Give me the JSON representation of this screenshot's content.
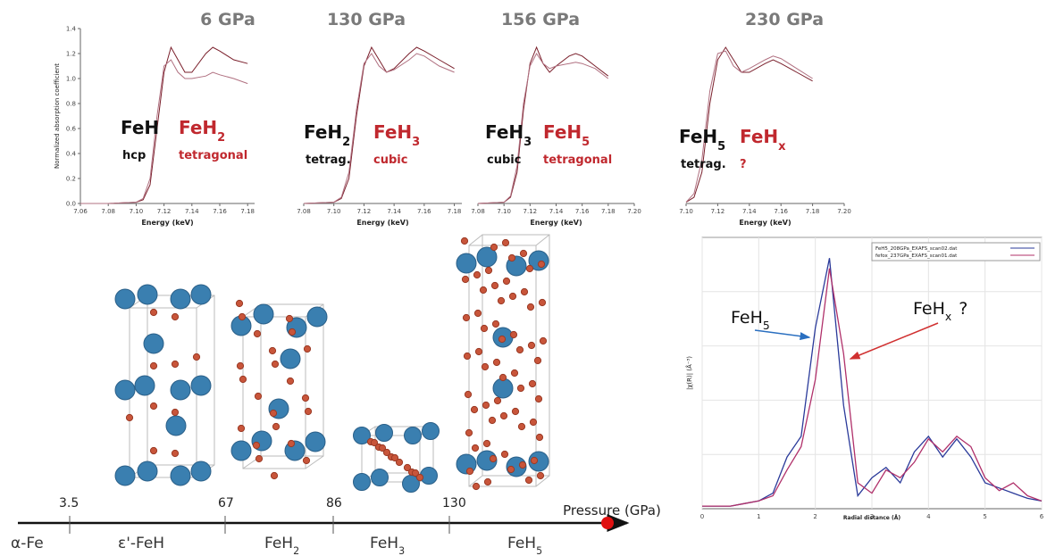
{
  "chart_data": [
    {
      "type": "line",
      "title": "6 GPa",
      "xlabel": "Energy (keV)",
      "ylabel": "Normalized absorption coefficient",
      "xlim": [
        7.06,
        7.185
      ],
      "ylim": [
        0,
        1.4
      ],
      "xticks": [
        7.06,
        7.08,
        {
          "value": 7.1,
          "label": "7.10"
        },
        7.12,
        7.14,
        7.16,
        7.18
      ],
      "yticks": [
        {
          "value": 0,
          "label": "0.0"
        },
        0.2,
        0.4,
        0.6,
        0.8,
        {
          "value": 1,
          "label": "1.0"
        },
        1.2,
        1.4
      ],
      "x": [
        7.06,
        7.08,
        7.1,
        7.105,
        7.11,
        7.115,
        7.12,
        7.125,
        7.13,
        7.135,
        7.14,
        7.15,
        7.155,
        7.16,
        7.17,
        7.18
      ],
      "series": [
        {
          "color": "#7a1f2b",
          "values": [
            0,
            0,
            0.01,
            0.03,
            0.15,
            0.6,
            1.05,
            1.25,
            1.15,
            1.05,
            1.05,
            1.2,
            1.25,
            1.22,
            1.15,
            1.12
          ]
        },
        {
          "color": "#b07080",
          "values": [
            0,
            0,
            0.01,
            0.04,
            0.2,
            0.7,
            1.1,
            1.15,
            1.05,
            1.0,
            1.0,
            1.02,
            1.05,
            1.03,
            1.0,
            0.96
          ]
        }
      ],
      "phases": [
        {
          "base": "FeH",
          "note": "hcp",
          "color": "#111111"
        },
        {
          "base": "FeH",
          "sub": "2",
          "note": "tetragonal",
          "color": "#c0282e"
        }
      ]
    },
    {
      "type": "line",
      "title": "130 GPa",
      "xlabel": "Energy (keV)",
      "xlim": [
        7.08,
        7.185
      ],
      "ylim": [
        0,
        1.4
      ],
      "xticks": [
        7.08,
        {
          "value": 7.1,
          "label": "7.10"
        },
        7.12,
        7.14,
        7.16,
        7.18
      ],
      "x": [
        7.08,
        7.1,
        7.105,
        7.11,
        7.115,
        7.12,
        7.125,
        7.13,
        7.135,
        7.14,
        7.15,
        7.155,
        7.16,
        7.17,
        7.18
      ],
      "series": [
        {
          "color": "#7a1f2b",
          "values": [
            0,
            0.01,
            0.04,
            0.2,
            0.7,
            1.1,
            1.25,
            1.15,
            1.05,
            1.08,
            1.2,
            1.25,
            1.22,
            1.15,
            1.08
          ]
        },
        {
          "color": "#b07080",
          "values": [
            0,
            0.01,
            0.05,
            0.25,
            0.75,
            1.12,
            1.2,
            1.1,
            1.05,
            1.07,
            1.15,
            1.2,
            1.18,
            1.1,
            1.05
          ]
        }
      ],
      "phases": [
        {
          "base": "FeH",
          "sub": "2",
          "note": "tetrag.",
          "color": "#111111"
        },
        {
          "base": "FeH",
          "sub": "3",
          "note": "cubic",
          "color": "#c0282e"
        }
      ]
    },
    {
      "type": "line",
      "title": "156 GPa",
      "xlabel": "Energy (keV)",
      "xlim": [
        7.08,
        7.2
      ],
      "ylim": [
        0,
        1.4
      ],
      "xticks": [
        7.08,
        {
          "value": 7.1,
          "label": "7.10"
        },
        7.12,
        7.14,
        7.16,
        7.18,
        {
          "value": 7.2,
          "label": "7.20"
        }
      ],
      "x": [
        7.08,
        7.1,
        7.105,
        7.11,
        7.115,
        7.12,
        7.125,
        7.13,
        7.135,
        7.14,
        7.15,
        7.155,
        7.16,
        7.17,
        7.18
      ],
      "series": [
        {
          "color": "#7a1f2b",
          "values": [
            0,
            0.01,
            0.05,
            0.25,
            0.75,
            1.12,
            1.25,
            1.12,
            1.05,
            1.1,
            1.18,
            1.2,
            1.18,
            1.1,
            1.02
          ]
        },
        {
          "color": "#b07080",
          "values": [
            0,
            0.01,
            0.06,
            0.3,
            0.8,
            1.1,
            1.2,
            1.12,
            1.08,
            1.1,
            1.12,
            1.13,
            1.12,
            1.08,
            1.0
          ]
        }
      ],
      "phases": [
        {
          "base": "FeH",
          "sub": "3",
          "note": "cubic",
          "color": "#111111"
        },
        {
          "base": "FeH",
          "sub": "5",
          "note": "tetragonal",
          "color": "#c0282e"
        }
      ]
    },
    {
      "type": "line",
      "title": "230 GPa",
      "xlabel": "Energy (keV)",
      "xlim": [
        7.1,
        7.2
      ],
      "ylim": [
        0,
        1.4
      ],
      "xticks": [
        {
          "value": 7.1,
          "label": "7.10"
        },
        7.12,
        7.14,
        7.16,
        7.18,
        {
          "value": 7.2,
          "label": "7.20"
        }
      ],
      "x": [
        7.1,
        7.105,
        7.11,
        7.115,
        7.12,
        7.125,
        7.13,
        7.135,
        7.14,
        7.15,
        7.155,
        7.16,
        7.17,
        7.18
      ],
      "series": [
        {
          "color": "#7a1f2b",
          "values": [
            0.01,
            0.05,
            0.25,
            0.8,
            1.15,
            1.25,
            1.15,
            1.05,
            1.05,
            1.12,
            1.15,
            1.12,
            1.05,
            0.98
          ]
        },
        {
          "color": "#b07080",
          "values": [
            0.01,
            0.08,
            0.35,
            0.9,
            1.2,
            1.22,
            1.1,
            1.05,
            1.08,
            1.15,
            1.18,
            1.16,
            1.08,
            1.0
          ]
        }
      ],
      "phases": [
        {
          "base": "FeH",
          "sub": "5",
          "note": "tetrag.",
          "color": "#111111"
        },
        {
          "base": "FeH",
          "sub": "x",
          "note": "?",
          "color": "#c0282e"
        }
      ]
    },
    {
      "type": "line",
      "xlabel": "Radial distance (Å)",
      "ylabel": "|χ(R)| (Å⁻³)",
      "xlim": [
        0,
        6
      ],
      "ylim": [
        0,
        1.05
      ],
      "xticks": [
        0,
        1,
        2,
        3,
        4,
        5,
        6
      ],
      "x": [
        0,
        0.25,
        0.5,
        0.75,
        1,
        1.25,
        1.5,
        1.75,
        2,
        2.25,
        2.5,
        2.75,
        3,
        3.25,
        3.5,
        3.75,
        4,
        4.25,
        4.5,
        4.75,
        5,
        5.25,
        5.5,
        5.75,
        6
      ],
      "series": [
        {
          "name": "FeH5_208GPa_EXAFS_scan02.dat",
          "color": "#2a3a9a",
          "values": [
            0.01,
            0.01,
            0.01,
            0.02,
            0.03,
            0.06,
            0.2,
            0.28,
            0.7,
            0.97,
            0.4,
            0.05,
            0.12,
            0.16,
            0.1,
            0.22,
            0.28,
            0.2,
            0.27,
            0.2,
            0.1,
            0.08,
            0.06,
            0.04,
            0.03
          ]
        },
        {
          "name": "fefox_237GPa_EXAFS_scan01.dat",
          "color": "#b0306a",
          "values": [
            0.01,
            0.01,
            0.01,
            0.02,
            0.03,
            0.05,
            0.15,
            0.24,
            0.5,
            0.93,
            0.6,
            0.1,
            0.06,
            0.15,
            0.12,
            0.18,
            0.27,
            0.22,
            0.28,
            0.24,
            0.12,
            0.07,
            0.1,
            0.05,
            0.03
          ]
        }
      ],
      "annotations": [
        {
          "base": "FeH",
          "sub": "5",
          "color": "#111111"
        },
        {
          "base": "FeH",
          "sub": "x",
          "tail": "?",
          "color": "#111111"
        }
      ]
    }
  ],
  "pressure_axis": {
    "label": "Pressure (GPa)",
    "ticks": [
      "3.5",
      "67",
      "86",
      "130"
    ],
    "phases": [
      {
        "base": "α-Fe"
      },
      {
        "base": "ε'-FeH"
      },
      {
        "base": "FeH",
        "sub": "2"
      },
      {
        "base": "FeH",
        "sub": "3"
      },
      {
        "base": "FeH",
        "sub": "5"
      }
    ]
  }
}
